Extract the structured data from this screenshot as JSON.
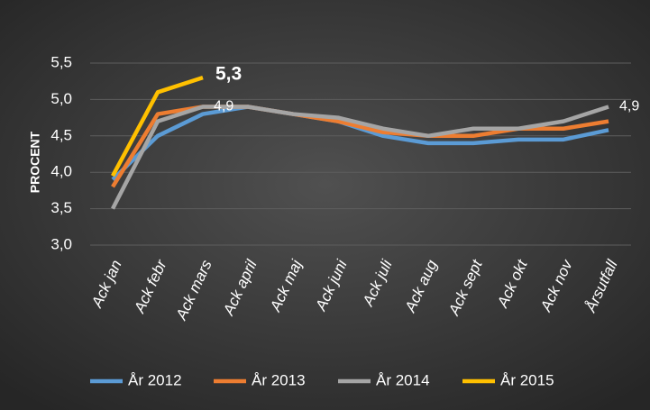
{
  "chart_data": {
    "type": "line",
    "y_label": "PROCENT",
    "categories": [
      "Ack jan",
      "Ack febr",
      "Ack mars",
      "Ack april",
      "Ack maj",
      "Ack juni",
      "Ack juli",
      "Ack aug",
      "Ack sept",
      "Ack okt",
      "Ack nov",
      "Årsutfall"
    ],
    "series": [
      {
        "name": "År 2012",
        "color": "#5b9bd5",
        "values": [
          3.9,
          4.5,
          4.8,
          4.9,
          4.8,
          4.7,
          4.5,
          4.4,
          4.4,
          4.45,
          4.45,
          4.58
        ]
      },
      {
        "name": "År 2013",
        "color": "#ed7d31",
        "values": [
          3.8,
          4.8,
          4.9,
          4.9,
          4.8,
          4.7,
          4.55,
          4.5,
          4.5,
          4.6,
          4.6,
          4.7
        ]
      },
      {
        "name": "År 2014",
        "color": "#a5a5a5",
        "values": [
          3.5,
          4.7,
          4.9,
          4.9,
          4.8,
          4.75,
          4.6,
          4.5,
          4.6,
          4.6,
          4.7,
          4.9
        ],
        "value_labels": [
          null,
          null,
          "4,9",
          null,
          null,
          null,
          null,
          null,
          null,
          null,
          null,
          "4,9"
        ]
      },
      {
        "name": "År 2015",
        "color": "#ffc000",
        "values": [
          3.95,
          5.1,
          5.3,
          null,
          null,
          null,
          null,
          null,
          null,
          null,
          null,
          null
        ],
        "value_labels": [
          null,
          null,
          "5,3",
          null,
          null,
          null,
          null,
          null,
          null,
          null,
          null,
          null
        ]
      }
    ],
    "ylim": [
      3.0,
      5.5
    ],
    "yticks": [
      {
        "value": 3.0,
        "label": "3,0"
      },
      {
        "value": 3.5,
        "label": "3,5"
      },
      {
        "value": 4.0,
        "label": "4,0"
      },
      {
        "value": 4.5,
        "label": "4,5"
      },
      {
        "value": 5.0,
        "label": "5,0"
      },
      {
        "value": 5.5,
        "label": "5,5"
      }
    ],
    "grid": true,
    "legend": "bottom"
  }
}
